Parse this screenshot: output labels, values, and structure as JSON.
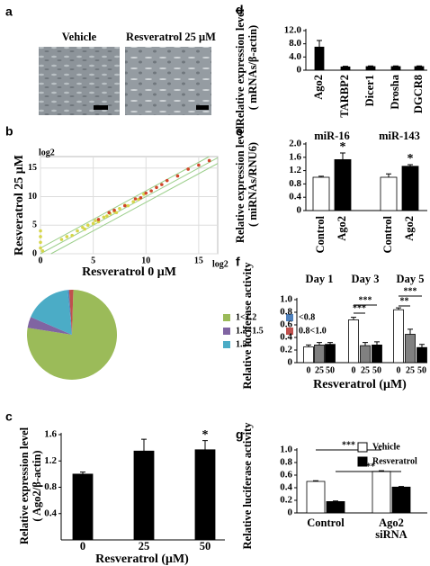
{
  "images": {
    "panel": "a",
    "labels": [
      "Vehicle",
      "Resveratrol 25 μM"
    ]
  },
  "chart_data": [
    {
      "type": "scatter",
      "panel": "b",
      "x_label": "Resveratrol 0 μM",
      "y_label": "Resveratrol 25 μM",
      "x_unit": "log2",
      "y_unit": "log2",
      "xlim": [
        0,
        16.8
      ],
      "ylim": [
        0,
        17
      ],
      "xticks": [
        0,
        5,
        10,
        15
      ],
      "yticks": [
        0,
        5,
        10,
        15
      ],
      "grid": true,
      "series": [
        {
          "color": "#d6d64a",
          "x": [
            0,
            0,
            0,
            0,
            0.2,
            2,
            2.5,
            3,
            3.5,
            4,
            4.2,
            4.5,
            5,
            5.2,
            5.5,
            6,
            6.3,
            6.6,
            7,
            7.2,
            7.5,
            8,
            8.3,
            8.8,
            9.3,
            9.8
          ],
          "y": [
            1,
            2,
            3,
            4,
            0.5,
            2.5,
            3,
            3.2,
            4,
            4.6,
            4.3,
            5,
            5.3,
            5.8,
            5.6,
            6.4,
            6.6,
            7,
            7.4,
            7.2,
            7.9,
            8.5,
            8.4,
            9.1,
            9.5,
            10.4
          ]
        },
        {
          "color": "#d2452a",
          "x": [
            5.5,
            6.5,
            7,
            8,
            9,
            9.5,
            10,
            10.5,
            11,
            11.5,
            12,
            13,
            14,
            15,
            16
          ],
          "y": [
            6,
            7.2,
            7.6,
            8.4,
            9.6,
            9.8,
            10.6,
            11,
            11.6,
            12.1,
            12.8,
            13.6,
            14.8,
            15.5,
            16.3
          ]
        }
      ]
    },
    {
      "type": "pie",
      "categories": [
        "1<1.2",
        "1.2<1.5",
        "1.5<",
        "<0.8",
        "0.8<1.0"
      ],
      "values": [
        77,
        4,
        17,
        0.5,
        1.5
      ],
      "colors": [
        "#9bbb59",
        "#8064a2",
        "#4bacc6",
        "#4f81bd",
        "#c0504d"
      ]
    },
    {
      "type": "bar",
      "panel": "c",
      "y_label": [
        "Relative expression level",
        "( Ago2/β-actin)"
      ],
      "x_label": "Resveratrol (μM)",
      "categories": [
        "0",
        "25",
        "50"
      ],
      "ylim": [
        0,
        1.6
      ],
      "yticks": [
        0.4,
        0.8,
        1.2,
        1.6
      ],
      "series": [
        {
          "color": "#000000",
          "values": [
            1.0,
            1.35,
            1.37
          ],
          "errors": [
            0.03,
            0.18,
            0.14
          ]
        }
      ],
      "annotations": [
        {
          "text": "*",
          "bar": [
            2,
            0
          ]
        }
      ]
    },
    {
      "type": "bar",
      "panel": "d",
      "y_label": [
        "Relative expression level",
        "( mRNAs/β-actin)"
      ],
      "categories": [
        "Ago2",
        "TARBP2",
        "Dicer1",
        "Drosha",
        "DGCR8"
      ],
      "ylim": [
        0,
        12
      ],
      "yticks": [
        0,
        {
          "value": 4,
          "label": "4.0"
        },
        {
          "value": 8,
          "label": "8.0"
        },
        {
          "value": 12,
          "label": "12.0"
        }
      ],
      "series": [
        {
          "color": "#000000",
          "values": [
            7.0,
            1.0,
            1.1,
            1.1,
            1.1
          ],
          "errors": [
            2.0,
            0.2,
            0.2,
            0.2,
            0.2
          ]
        }
      ]
    },
    {
      "type": "bar",
      "panel": "e",
      "y_label": [
        "Relative expression level",
        "( miRNAs/RNU6)"
      ],
      "categories": [
        "miR-16",
        "miR-143"
      ],
      "ylim": [
        0,
        2
      ],
      "yticks": [
        0,
        0.4,
        0.8,
        1.2,
        1.6,
        {
          "value": 2,
          "label": "2.0"
        }
      ],
      "series": [
        {
          "name": "Control",
          "color": "#ffffff",
          "values": [
            1.0,
            1.0
          ],
          "errors": [
            0.03,
            0.1
          ]
        },
        {
          "name": "Ago2",
          "color": "#000000",
          "values": [
            1.53,
            1.33
          ],
          "errors": [
            0.2,
            0.05
          ]
        }
      ],
      "annotations": [
        {
          "text": "*",
          "bar": [
            0,
            1
          ]
        },
        {
          "text": "*",
          "bar": [
            1,
            1
          ]
        }
      ]
    },
    {
      "type": "bar",
      "panel": "f",
      "y_label": [
        "Relative  luciferase activity"
      ],
      "x_label": "Resveratrol (μM)",
      "categories": [
        "Day 1",
        "Day 3",
        "Day 5"
      ],
      "ylim": [
        0,
        1
      ],
      "yticks": [
        0,
        0.2,
        0.4,
        0.6,
        0.8,
        {
          "value": 1,
          "label": "1.0"
        }
      ],
      "series": [
        {
          "name": "0",
          "color": "#ffffff",
          "values": [
            0.25,
            0.68,
            0.84
          ],
          "errors": [
            0.03,
            0.04,
            0.03
          ]
        },
        {
          "name": "25",
          "color": "#808080",
          "values": [
            0.28,
            0.27,
            0.45
          ],
          "errors": [
            0.04,
            0.05,
            0.08
          ]
        },
        {
          "name": "50",
          "color": "#000000",
          "values": [
            0.29,
            0.28,
            0.24
          ],
          "errors": [
            0.03,
            0.05,
            0.05
          ]
        }
      ],
      "annotations": [
        {
          "text": "***",
          "bracket": [
            [
              1,
              0
            ],
            [
              1,
              2
            ]
          ]
        },
        {
          "text": "***",
          "bracket": [
            [
              1,
              0
            ],
            [
              1,
              1
            ]
          ]
        },
        {
          "text": "***",
          "bracket": [
            [
              2,
              0
            ],
            [
              2,
              2
            ]
          ]
        },
        {
          "text": "**",
          "bracket": [
            [
              2,
              0
            ],
            [
              2,
              1
            ]
          ]
        }
      ]
    },
    {
      "type": "bar",
      "panel": "g",
      "y_label": [
        "Relative luciferase activity"
      ],
      "legend": "top-right",
      "categories": [
        "Control",
        "Ago2 siRNA"
      ],
      "ylim": [
        0,
        1
      ],
      "yticks": [
        0,
        0.2,
        0.4,
        0.6,
        0.8,
        {
          "value": 1,
          "label": "1.0"
        }
      ],
      "series": [
        {
          "name": "Vehicle",
          "color": "#ffffff",
          "values": [
            0.5,
            0.66
          ],
          "errors": [
            0.01,
            0.01
          ]
        },
        {
          "name": "Resveratrol",
          "color": "#000000",
          "values": [
            0.18,
            0.41
          ],
          "errors": [
            0.01,
            0.01
          ]
        }
      ],
      "annotations": [
        {
          "text": "***",
          "bracket": [
            [
              0,
              0
            ],
            [
              1,
              0
            ]
          ]
        },
        {
          "text": "***",
          "bracket": [
            [
              0,
              1
            ],
            [
              1,
              1
            ]
          ]
        }
      ]
    }
  ]
}
